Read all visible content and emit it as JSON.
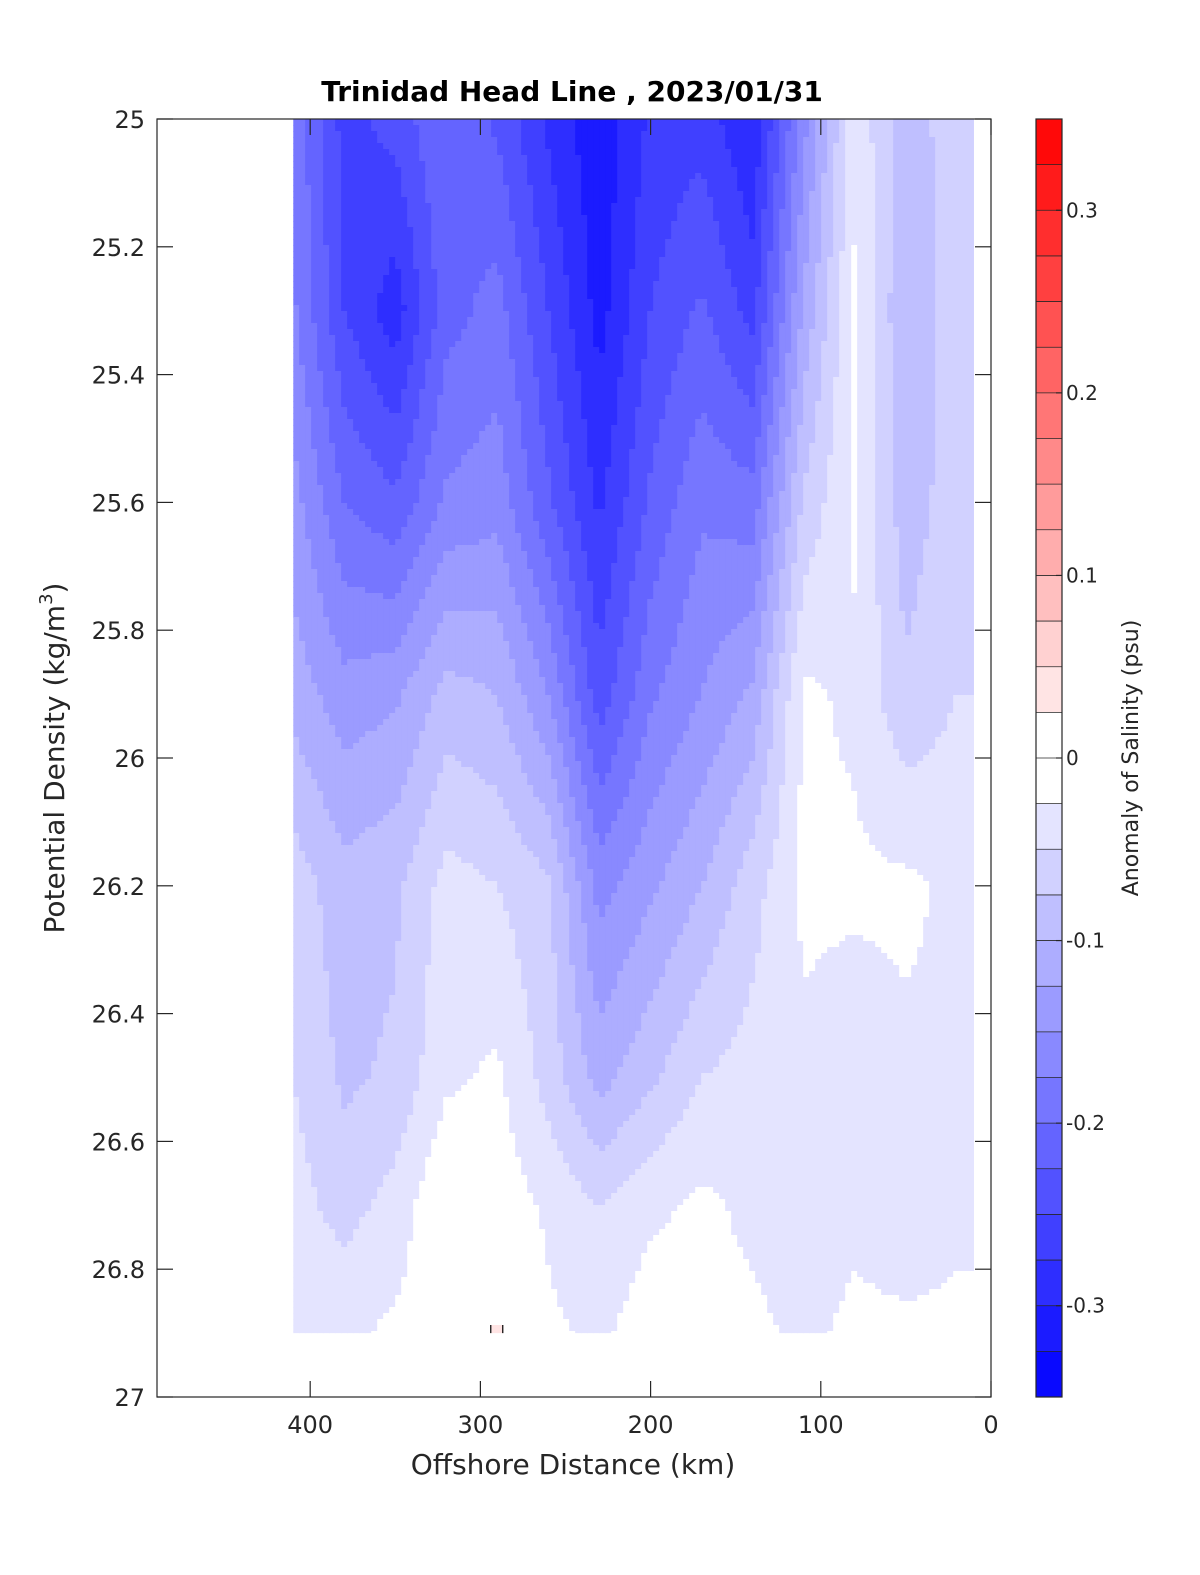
{
  "chart_data": {
    "type": "heatmap",
    "subtype": "filled-contour",
    "title": "Trinidad Head Line , 2023/01/31",
    "xlabel": "Offshore Distance (km)",
    "ylabel_main": "Potential Density (kg/m",
    "ylabel_sup": "3",
    "ylabel_close": ")",
    "colorbar_label": "Anomaly of Salinity (psu)",
    "x_axis": {
      "range": [
        490,
        0
      ],
      "reversed": true,
      "ticks": [
        400,
        300,
        200,
        100,
        0
      ]
    },
    "y_axis": {
      "range": [
        25,
        27
      ],
      "reversed": true,
      "ticks": [
        25,
        25.2,
        25.4,
        25.6,
        25.8,
        26,
        26.2,
        26.4,
        26.6,
        26.8,
        27
      ],
      "tick_labels": [
        "25",
        "25.2",
        "25.4",
        "25.6",
        "25.8",
        "26",
        "26.2",
        "26.4",
        "26.6",
        "26.8",
        "27"
      ]
    },
    "colorbar": {
      "range": [
        -0.35,
        0.35
      ],
      "step": 0.025,
      "ticks": [
        0.3,
        0.2,
        0.1,
        0,
        -0.1,
        -0.2,
        -0.3
      ],
      "tick_labels": [
        "0.3",
        "0.2",
        "0.1",
        "0",
        "-0.1",
        "-0.2",
        "-0.3"
      ],
      "neg_color": "#0000ff",
      "pos_color": "#ff0000",
      "white_band": [
        -0.025,
        0.025
      ]
    },
    "data_extent": {
      "x": [
        10,
        410
      ],
      "y": [
        25,
        26.9
      ]
    },
    "stations_km": [
      410,
      380,
      350,
      320,
      290,
      260,
      230,
      200,
      170,
      140,
      110,
      80,
      50,
      20
    ],
    "density_levels": [
      25.0,
      25.3,
      25.6,
      25.9,
      26.2,
      26.5,
      26.7,
      26.9
    ],
    "anomaly_grid": [
      [
        -0.18,
        -0.26,
        -0.24,
        -0.2,
        -0.23,
        -0.28,
        -0.32,
        -0.27,
        -0.26,
        -0.3,
        -0.16,
        -0.03,
        -0.09,
        -0.06
      ],
      [
        -0.17,
        -0.25,
        -0.29,
        -0.21,
        -0.19,
        -0.25,
        -0.31,
        -0.25,
        -0.22,
        -0.26,
        -0.12,
        -0.02,
        -0.1,
        -0.06
      ],
      [
        -0.14,
        -0.2,
        -0.22,
        -0.17,
        -0.16,
        -0.22,
        -0.28,
        -0.22,
        -0.18,
        -0.19,
        -0.07,
        -0.02,
        -0.09,
        -0.06
      ],
      [
        -0.11,
        -0.14,
        -0.13,
        -0.09,
        -0.1,
        -0.15,
        -0.24,
        -0.18,
        -0.15,
        -0.12,
        -0.02,
        -0.03,
        -0.07,
        -0.05
      ],
      [
        -0.06,
        -0.09,
        -0.08,
        -0.04,
        -0.05,
        -0.07,
        -0.16,
        -0.13,
        -0.1,
        -0.06,
        -0.02,
        -0.02,
        -0.02,
        -0.03
      ],
      [
        -0.05,
        -0.08,
        -0.07,
        -0.03,
        -0.02,
        -0.06,
        -0.11,
        -0.08,
        -0.05,
        -0.04,
        -0.03,
        -0.04,
        -0.03,
        -0.03
      ],
      [
        -0.04,
        -0.06,
        -0.04,
        0.0,
        -0.01,
        -0.03,
        -0.05,
        -0.03,
        -0.02,
        -0.03,
        -0.04,
        -0.03,
        -0.04,
        -0.03
      ],
      [
        -0.03,
        -0.03,
        -0.02,
        -0.01,
        0.03,
        -0.02,
        -0.03,
        -0.01,
        -0.02,
        -0.02,
        -0.03,
        -0.02,
        -0.02,
        -0.02
      ]
    ]
  }
}
